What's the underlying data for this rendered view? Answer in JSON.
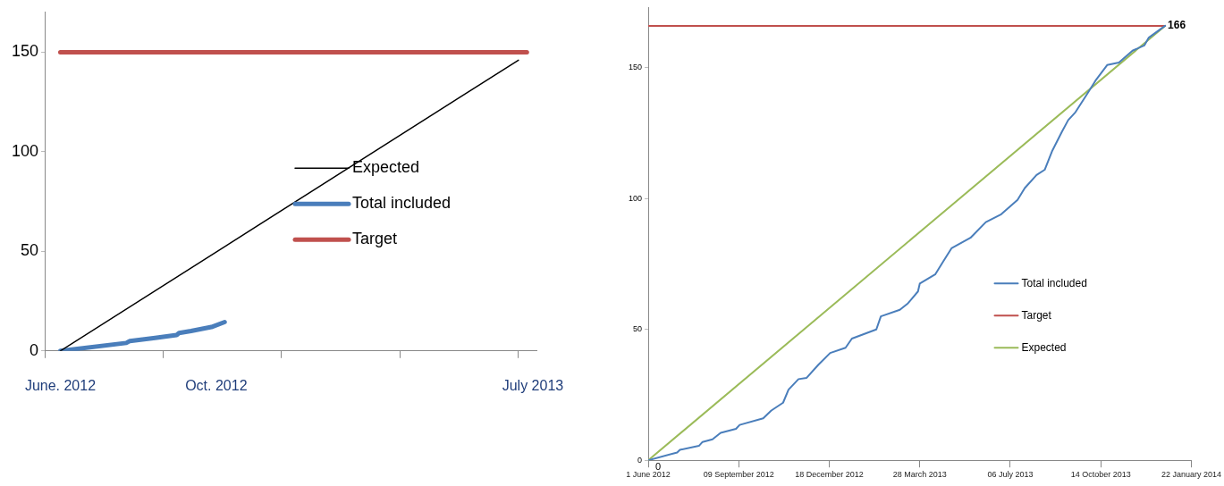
{
  "chart_data": [
    {
      "type": "line",
      "xlim": [
        "2012-06-01",
        "2013-07-16"
      ],
      "ylim": [
        0,
        170
      ],
      "yticks": [
        0,
        50,
        100,
        150
      ],
      "xticks": [
        {
          "value": "2012-06-01",
          "label": null
        },
        {
          "value": "2012-09-08",
          "label": null
        },
        {
          "value": "2012-12-15",
          "label": null
        },
        {
          "value": "2013-03-24",
          "label": null
        },
        {
          "value": "2013-07-01",
          "label": null
        },
        {
          "value": "2012-06-14",
          "label": "June. 2012"
        },
        {
          "value": "2012-10-22",
          "label": "Oct. 2012"
        },
        {
          "value": "2013-07-13",
          "label": "July 2013"
        }
      ],
      "legend": "right",
      "series": [
        {
          "name": "Expected",
          "color": "#000000",
          "x": [
            "2012-06-14",
            "2013-07-01"
          ],
          "values": [
            0,
            146
          ]
        },
        {
          "name": "Total included",
          "color": "#4a7ebb",
          "x": [
            "2012-06-14",
            "2012-08-08",
            "2012-08-11",
            "2012-09-01",
            "2012-09-19",
            "2012-09-21",
            "2012-10-01",
            "2012-10-18",
            "2012-10-29"
          ],
          "values": [
            0,
            4,
            5,
            6.5,
            8,
            9,
            10,
            12,
            14.5
          ]
        },
        {
          "name": "Target",
          "color": "#c0504d",
          "x": [
            "2012-06-14",
            "2013-07-08"
          ],
          "values": [
            150,
            150
          ]
        }
      ]
    },
    {
      "type": "line",
      "xlim": [
        "2012-06-01",
        "2014-01-22"
      ],
      "ylim": [
        0,
        173
      ],
      "yticks": [
        0,
        50,
        100,
        150
      ],
      "xticks": [
        {
          "value": "2012-06-01",
          "label": "1 June 2012"
        },
        {
          "value": "2012-09-09",
          "label": "09 September 2012"
        },
        {
          "value": "2012-12-18",
          "label": "18 December 2012"
        },
        {
          "value": "2013-03-28",
          "label": "28 March 2013"
        },
        {
          "value": "2013-07-06",
          "label": "06 July 2013"
        },
        {
          "value": "2013-10-14",
          "label": "14 October 2013"
        },
        {
          "value": "2014-01-22",
          "label": "22 January 2014"
        }
      ],
      "legend": "bottom right",
      "annotations": [
        {
          "text": "166",
          "x": "2013-12-24",
          "y": 166
        },
        {
          "text": "0",
          "x": "2012-06-01",
          "y": 0
        }
      ],
      "series": [
        {
          "name": "Total included",
          "color": "#4a7ebb",
          "x": [
            "2012-06-01",
            "2012-07-03",
            "2012-07-06",
            "2012-07-27",
            "2012-07-31",
            "2012-08-11",
            "2012-08-20",
            "2012-09-06",
            "2012-09-10",
            "2012-10-06",
            "2012-10-15",
            "2012-10-28",
            "2012-11-03",
            "2012-11-14",
            "2012-11-23",
            "2012-12-06",
            "2012-12-19",
            "2013-01-05",
            "2013-01-12",
            "2013-02-08",
            "2013-02-13",
            "2013-03-06",
            "2013-03-15",
            "2013-03-26",
            "2013-03-28",
            "2013-04-14",
            "2013-04-23",
            "2013-05-02",
            "2013-05-23",
            "2013-06-09",
            "2013-06-26",
            "2013-07-14",
            "2013-07-22",
            "2013-08-04",
            "2013-08-13",
            "2013-08-21",
            "2013-09-01",
            "2013-09-08",
            "2013-09-16",
            "2013-09-29",
            "2013-10-08",
            "2013-10-21",
            "2013-11-03",
            "2013-11-18",
            "2013-12-01",
            "2013-12-06",
            "2013-12-24"
          ],
          "values": [
            0,
            3,
            4,
            5.5,
            7,
            8,
            10.5,
            12,
            13.5,
            16,
            19,
            22,
            27,
            31,
            31.5,
            36.5,
            41,
            43,
            46.5,
            50,
            55,
            57.5,
            60,
            64.5,
            67.5,
            71,
            76,
            81,
            85,
            91,
            94,
            99.5,
            104,
            109,
            111,
            118,
            125.5,
            130,
            133,
            140,
            145,
            151,
            152,
            156.5,
            158.5,
            161.5,
            166
          ]
        },
        {
          "name": "Target",
          "color": "#c0504d",
          "x": [
            "2012-06-01",
            "2013-12-24"
          ],
          "values": [
            166,
            166
          ]
        },
        {
          "name": "Expected",
          "color": "#9bbb59",
          "x": [
            "2012-06-01",
            "2013-12-24"
          ],
          "values": [
            0,
            166
          ]
        }
      ]
    }
  ]
}
